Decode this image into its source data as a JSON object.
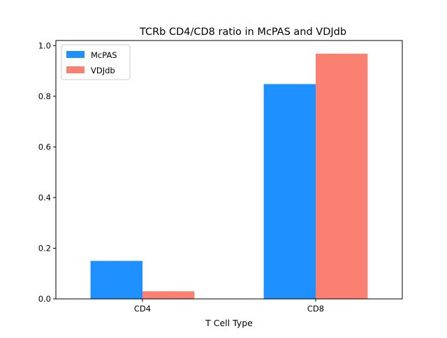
{
  "chart_data": {
    "type": "bar",
    "title": "TCRb CD4/CD8 ratio in McPAS and VDJdb",
    "xlabel": "T Cell Type",
    "ylabel": "",
    "categories": [
      "CD4",
      "CD8"
    ],
    "series": [
      {
        "name": "McPAS",
        "values": [
          0.15,
          0.848
        ],
        "color": "#1e90ff"
      },
      {
        "name": "VDJdb",
        "values": [
          0.03,
          0.968
        ],
        "color": "#fa8072"
      }
    ],
    "ylim": [
      0,
      1.02
    ],
    "yticks": [
      0.0,
      0.2,
      0.4,
      0.6,
      0.8,
      1.0
    ],
    "ytick_labels": [
      "0.0",
      "0.2",
      "0.4",
      "0.6",
      "0.8",
      "1.0"
    ],
    "grid": false,
    "legend": "top-left"
  }
}
